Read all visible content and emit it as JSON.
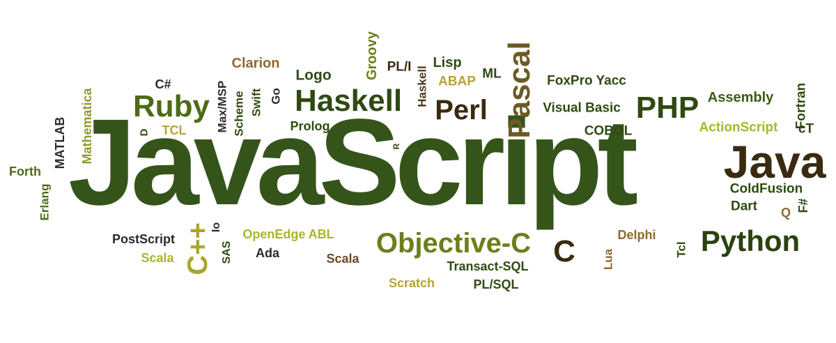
{
  "palette": {
    "dark_green": "#2f4a12",
    "mid_green": "#3d5b12",
    "olive": "#6b7f1a",
    "lime": "#a8b62c",
    "light_olive": "#8e9b2a",
    "brown": "#4a3a1e",
    "tan": "#9a7a3e",
    "dark_brown": "#3a2a10"
  },
  "words": {
    "javascript": "JavaScript",
    "java": "Java",
    "pascal": "Pascal",
    "haskell_big": "Haskell",
    "ruby": "Ruby",
    "php": "PHP",
    "python": "Python",
    "objective_c": "Objective-C",
    "perl": "Perl",
    "c": "C",
    "cpp": "C++",
    "groovy": "Groovy",
    "clarion": "Clarion",
    "pli": "PL/I",
    "lisp": "Lisp",
    "logo": "Logo",
    "abap": "ABAP",
    "ml": "ML",
    "haskell_small": "Haskell",
    "foxpro_yacc": "FoxPro Yacc",
    "fortran": "Fortran",
    "assembly": "Assembly",
    "visual_basic": "Visual Basic",
    "cobol": "COBOL",
    "actionscript": "ActionScript",
    "ct": "cT",
    "coldfusion": "ColdFusion",
    "dart": "Dart",
    "fsharp": "F#",
    "q": "Q",
    "csharp": "C#",
    "mathematica": "Mathematica",
    "matlab": "MATLAB",
    "forth": "Forth",
    "erlang": "Erlang",
    "d": "D",
    "tcl_upper": "TCL",
    "max_msp": "Max/MSP",
    "scheme": "Scheme",
    "swift": "Swift",
    "go": "Go",
    "prolog": "Prolog",
    "r": "R",
    "postscript": "PostScript",
    "scala_left": "Scala",
    "io": "Io",
    "sas": "SAS",
    "openedge_abl": "OpenEdge ABL",
    "ada": "Ada",
    "scala_mid": "Scala",
    "scratch": "Scratch",
    "transact_sql": "Transact-SQL",
    "pl_sql": "PL/SQL",
    "lua": "Lua",
    "delphi": "Delphi",
    "tcl_lower": "Tcl"
  }
}
